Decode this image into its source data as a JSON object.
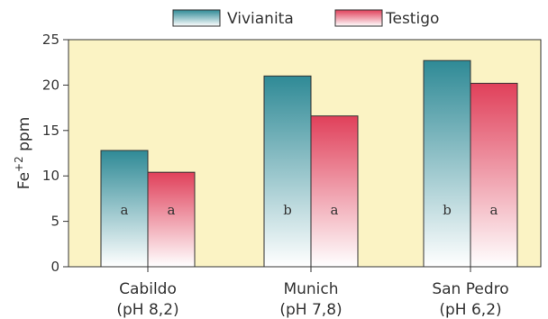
{
  "chart_data": {
    "type": "bar",
    "categories": [
      {
        "name": "Cabildo",
        "sub": "(pH 8,2)"
      },
      {
        "name": "Munich",
        "sub": "(pH 7,8)"
      },
      {
        "name": "San Pedro",
        "sub": "(pH 6,2)"
      }
    ],
    "series": [
      {
        "name": "Vivianita",
        "values": [
          12.8,
          21.0,
          22.7
        ],
        "letters": [
          "a",
          "b",
          "b"
        ],
        "color_top": "#2f8a96",
        "color_bottom": "#ffffff"
      },
      {
        "name": "Testigo",
        "values": [
          10.4,
          16.6,
          20.2
        ],
        "letters": [
          "a",
          "a",
          "a"
        ],
        "color_top": "#e0405a",
        "color_bottom": "#ffffff"
      }
    ],
    "ylabel": {
      "base": "Fe",
      "sup": "+2",
      "unit": " ppm"
    },
    "ylim": [
      0,
      25
    ],
    "yticks": [
      0,
      5,
      10,
      15,
      20,
      25
    ],
    "legend_position": "top-center",
    "grid": false,
    "plot_background": "#fbf3c4"
  }
}
